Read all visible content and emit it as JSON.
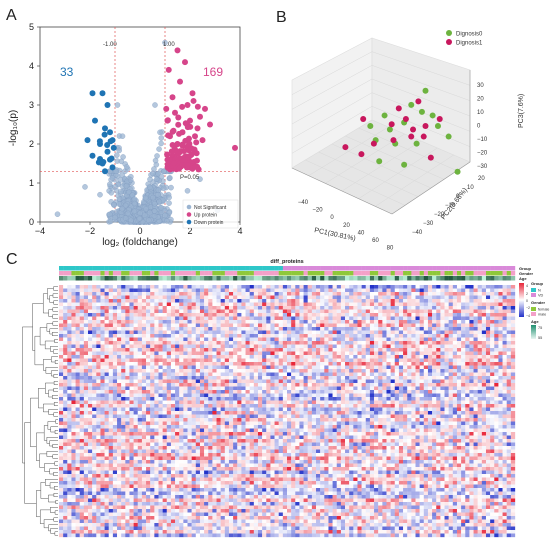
{
  "panels": {
    "A": "A",
    "B": "B",
    "C": "C"
  },
  "chart_data": [
    {
      "type": "scatter",
      "panel": "A",
      "xlabel": "log₂ (foldchange)",
      "ylabel": "-log₁₀(p)",
      "xlim": [
        -4,
        4
      ],
      "ylim": [
        0,
        5
      ],
      "xticks": [
        "−4",
        "−2",
        "0",
        "2",
        "4"
      ],
      "yticks": [
        "0",
        "1",
        "2",
        "3",
        "4",
        "5"
      ],
      "threshold_labels": {
        "left": "-1.00",
        "right": "1.00",
        "p": "P=0.05"
      },
      "thresholds": {
        "fc_left": -1,
        "fc_right": 1,
        "p_line": 1.3
      },
      "count_down": "33",
      "count_up": "169",
      "legend": [
        "Not Significant",
        "Up protein",
        "Down protein"
      ],
      "colors": {
        "ns": "#9bb4d1",
        "up": "#d6458a",
        "down": "#1f74b4",
        "threshold": "#e05555"
      },
      "down_points": [
        [
          -1.9,
          3.3
        ],
        [
          -1.5,
          3.3
        ],
        [
          -1.3,
          3.0
        ],
        [
          -1.8,
          2.6
        ],
        [
          -1.4,
          2.4
        ],
        [
          -1.2,
          2.3
        ],
        [
          -1.6,
          2.0
        ],
        [
          -1.1,
          2.1
        ],
        [
          -1.3,
          1.8
        ],
        [
          -1.9,
          1.7
        ],
        [
          -1.2,
          1.6
        ],
        [
          -1.5,
          1.5
        ],
        [
          -1.1,
          1.4
        ],
        [
          -1.4,
          1.3
        ],
        [
          -2.1,
          2.1
        ],
        [
          -1.05,
          1.9
        ]
      ],
      "up_points": [
        [
          1.8,
          4.1
        ],
        [
          1.6,
          3.6
        ],
        [
          1.3,
          3.2
        ],
        [
          1.9,
          3.0
        ],
        [
          2.1,
          3.3
        ],
        [
          1.4,
          2.8
        ],
        [
          1.1,
          2.6
        ],
        [
          2.0,
          2.6
        ],
        [
          2.3,
          2.4
        ],
        [
          1.7,
          2.3
        ],
        [
          1.2,
          2.2
        ],
        [
          2.5,
          2.1
        ],
        [
          1.5,
          2.0
        ],
        [
          1.9,
          1.9
        ],
        [
          2.2,
          1.8
        ],
        [
          1.3,
          1.7
        ],
        [
          1.1,
          1.6
        ],
        [
          1.6,
          1.5
        ],
        [
          2.0,
          1.4
        ],
        [
          1.4,
          1.4
        ],
        [
          1.2,
          1.35
        ],
        [
          1.8,
          1.6
        ],
        [
          2.6,
          2.9
        ],
        [
          2.4,
          2.7
        ],
        [
          3.8,
          1.9
        ],
        [
          1.15,
          3.9
        ],
        [
          1.5,
          4.4
        ],
        [
          2.2,
          2.2
        ],
        [
          1.05,
          2.9
        ],
        [
          2.8,
          2.5
        ]
      ],
      "ns_extra": [
        [
          1.0,
          4.6
        ],
        [
          -0.9,
          3.0
        ],
        [
          0.6,
          3.0
        ],
        [
          -0.7,
          2.2
        ],
        [
          0.8,
          2.3
        ],
        [
          -2.2,
          0.9
        ],
        [
          2.4,
          1.1
        ],
        [
          -1.6,
          0.7
        ],
        [
          1.9,
          0.8
        ],
        [
          -3.3,
          0.2
        ],
        [
          3.1,
          0.3
        ]
      ]
    },
    {
      "type": "scatter3d",
      "panel": "B",
      "xlabel": "PC1(30.81%)",
      "ylabel": "PC2(9.68%)",
      "zlabel": "PC3(7.6%)",
      "xticks": [
        "−40",
        "−20",
        "0",
        "20",
        "40",
        "60",
        "80"
      ],
      "yticks": [
        "−40",
        "−30",
        "−20",
        "−10",
        "0",
        "10",
        "20"
      ],
      "zticks": [
        "30",
        "20",
        "10",
        "0",
        "−10",
        "−20",
        "−30"
      ],
      "legend": [
        "Dignosis0",
        "Dignosis1"
      ],
      "colors": {
        "Dignosis0": "#6db33f",
        "Dignosis1": "#c8175d"
      },
      "series": [
        {
          "name": "Dignosis0",
          "points": [
            [
              0.75,
              0.3
            ],
            [
              0.67,
              0.38
            ],
            [
              0.73,
              0.42
            ],
            [
              0.63,
              0.48
            ],
            [
              0.79,
              0.44
            ],
            [
              0.82,
              0.5
            ],
            [
              0.52,
              0.44
            ],
            [
              0.55,
              0.52
            ],
            [
              0.58,
              0.6
            ],
            [
              0.7,
              0.6
            ],
            [
              0.49,
              0.7
            ],
            [
              0.47,
              0.58
            ],
            [
              0.44,
              0.5
            ],
            [
              0.88,
              0.56
            ],
            [
              0.63,
              0.72
            ],
            [
              0.93,
              0.76
            ]
          ]
        },
        {
          "name": "Dignosis1",
          "points": [
            [
              0.71,
              0.36
            ],
            [
              0.6,
              0.4
            ],
            [
              0.64,
              0.46
            ],
            [
              0.83,
              0.46
            ],
            [
              0.68,
              0.52
            ],
            [
              0.75,
              0.5
            ],
            [
              0.56,
              0.49
            ],
            [
              0.4,
              0.46
            ],
            [
              0.74,
              0.56
            ],
            [
              0.57,
              0.58
            ],
            [
              0.46,
              0.6
            ],
            [
              0.39,
              0.66
            ],
            [
              0.3,
              0.62
            ],
            [
              0.78,
              0.68
            ],
            [
              0.67,
              0.56
            ]
          ]
        }
      ]
    },
    {
      "type": "heatmap",
      "panel": "C",
      "title": "diff_proteins",
      "annotation_rows": [
        "Group",
        "Gender",
        "Age"
      ],
      "legends": {
        "value_scale": {
          "ticks": [
            "4",
            "2",
            "0",
            "−2",
            "−4"
          ]
        },
        "Group": {
          "title": "Group",
          "items": [
            {
              "label": "N",
              "color": "#2ec7c9"
            },
            {
              "label": "VD",
              "color": "#d98ad9"
            }
          ]
        },
        "Gender": {
          "title": "Gender",
          "items": [
            {
              "label": "female",
              "color": "#8fc83a"
            },
            {
              "label": "male",
              "color": "#f3a0c8"
            }
          ]
        },
        "Age": {
          "title": "Age",
          "ticks": [
            "75",
            "55"
          ]
        }
      },
      "n_rows": 72,
      "n_cols": 110,
      "colors": {
        "high": "#e8273a",
        "mid": "#ffffff",
        "low": "#2332c9"
      }
    }
  ]
}
